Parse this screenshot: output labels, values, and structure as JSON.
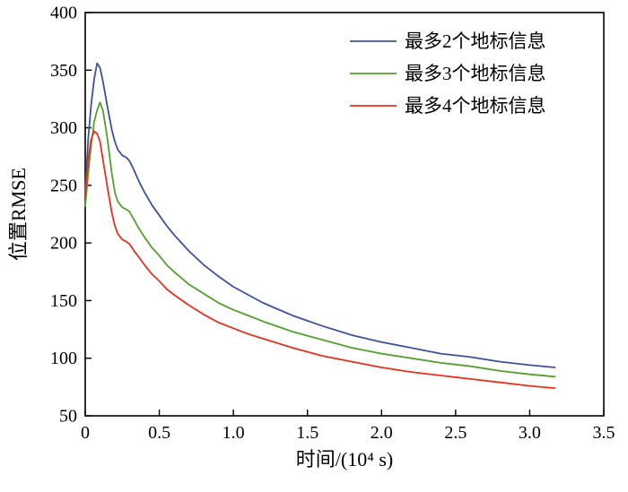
{
  "chart_data": {
    "type": "line",
    "title": "",
    "xlabel": "时间/(10⁴ s)",
    "ylabel": "位置RMSE",
    "xlim": [
      0,
      3.5
    ],
    "ylim": [
      50,
      400
    ],
    "grid": false,
    "legend_position": "upper-right-inside",
    "axis_color": "#000000",
    "x_tick_values": [
      0,
      0.5,
      1.0,
      1.5,
      2.0,
      2.5,
      3.0,
      3.5
    ],
    "x_tick_labels": [
      "0",
      "0.5",
      "1.0",
      "1.5",
      "2.0",
      "2.5",
      "3.0",
      "3.5"
    ],
    "y_tick_values": [
      50,
      100,
      150,
      200,
      250,
      300,
      350,
      400
    ],
    "y_tick_labels": [
      "50",
      "100",
      "150",
      "200",
      "250",
      "300",
      "350",
      "400"
    ],
    "x": [
      0,
      0.02,
      0.04,
      0.06,
      0.08,
      0.1,
      0.12,
      0.15,
      0.18,
      0.2,
      0.22,
      0.25,
      0.28,
      0.3,
      0.33,
      0.36,
      0.4,
      0.45,
      0.5,
      0.55,
      0.6,
      0.7,
      0.8,
      0.9,
      1.0,
      1.1,
      1.2,
      1.4,
      1.6,
      1.8,
      2.0,
      2.2,
      2.4,
      2.6,
      2.8,
      3.0,
      3.17
    ],
    "series": [
      {
        "name": "最多2个地标信息",
        "color": "#3c50a0",
        "values": [
          243,
          290,
          320,
          342,
          356,
          352,
          340,
          318,
          298,
          288,
          281,
          276,
          274,
          271,
          263,
          254,
          244,
          233,
          224,
          215,
          207,
          193,
          181,
          171,
          162,
          155,
          148,
          137,
          128,
          120,
          114,
          109,
          104,
          101,
          97,
          94,
          92
        ]
      },
      {
        "name": "最多3个地标信息",
        "color": "#52a12d",
        "values": [
          232,
          260,
          285,
          305,
          315,
          322,
          315,
          290,
          260,
          244,
          236,
          231,
          229,
          227,
          220,
          213,
          205,
          196,
          189,
          181,
          175,
          164,
          156,
          148,
          142,
          137,
          132,
          123,
          116,
          109,
          104,
          100,
          96,
          93,
          89,
          86,
          84
        ]
      },
      {
        "name": "最多4个地标信息",
        "color": "#e8301c",
        "values": [
          240,
          272,
          290,
          297,
          295,
          288,
          272,
          248,
          226,
          215,
          208,
          203,
          201,
          199,
          193,
          188,
          181,
          173,
          167,
          160,
          155,
          146,
          138,
          131,
          126,
          121,
          117,
          109,
          102,
          97,
          92,
          88,
          85,
          82,
          79,
          76,
          74
        ]
      }
    ]
  }
}
